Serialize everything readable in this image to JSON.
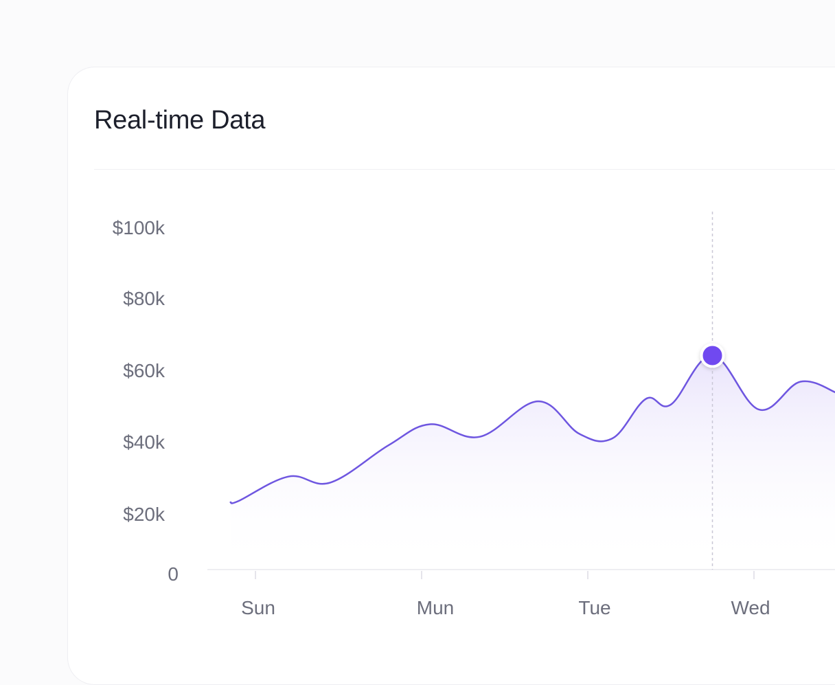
{
  "card": {
    "title": "Real-time Data"
  },
  "colors": {
    "line": "#6e56e0",
    "area_top": "#e7e1fb",
    "marker": "#7048f0",
    "crosshair": "#c9c7d6"
  },
  "chart_data": {
    "type": "area",
    "title": "Real-time Data",
    "xlabel": "",
    "ylabel": "",
    "x_ticks": [
      "Sun",
      "Mun",
      "Tue",
      "Wed"
    ],
    "y_ticks": [
      "0",
      "$20k",
      "$40k",
      "$60k",
      "$80k",
      "$100k"
    ],
    "ylim": [
      0,
      100000
    ],
    "grid": false,
    "highlighted_point": {
      "x": 2.75,
      "y": 59800
    },
    "series": [
      {
        "values": [
          {
            "x": -0.15,
            "y": 18800
          },
          {
            "x": -0.1,
            "y": 19200
          },
          {
            "x": 0.2,
            "y": 26000
          },
          {
            "x": 0.45,
            "y": 24300
          },
          {
            "x": 0.8,
            "y": 34700
          },
          {
            "x": 1.05,
            "y": 40600
          },
          {
            "x": 1.35,
            "y": 37100
          },
          {
            "x": 1.7,
            "y": 47000
          },
          {
            "x": 1.95,
            "y": 37900
          },
          {
            "x": 2.15,
            "y": 36700
          },
          {
            "x": 2.35,
            "y": 47700
          },
          {
            "x": 2.5,
            "y": 46100
          },
          {
            "x": 2.75,
            "y": 59800
          },
          {
            "x": 3.03,
            "y": 44700
          },
          {
            "x": 3.28,
            "y": 52500
          },
          {
            "x": 3.5,
            "y": 49300
          }
        ]
      }
    ]
  }
}
